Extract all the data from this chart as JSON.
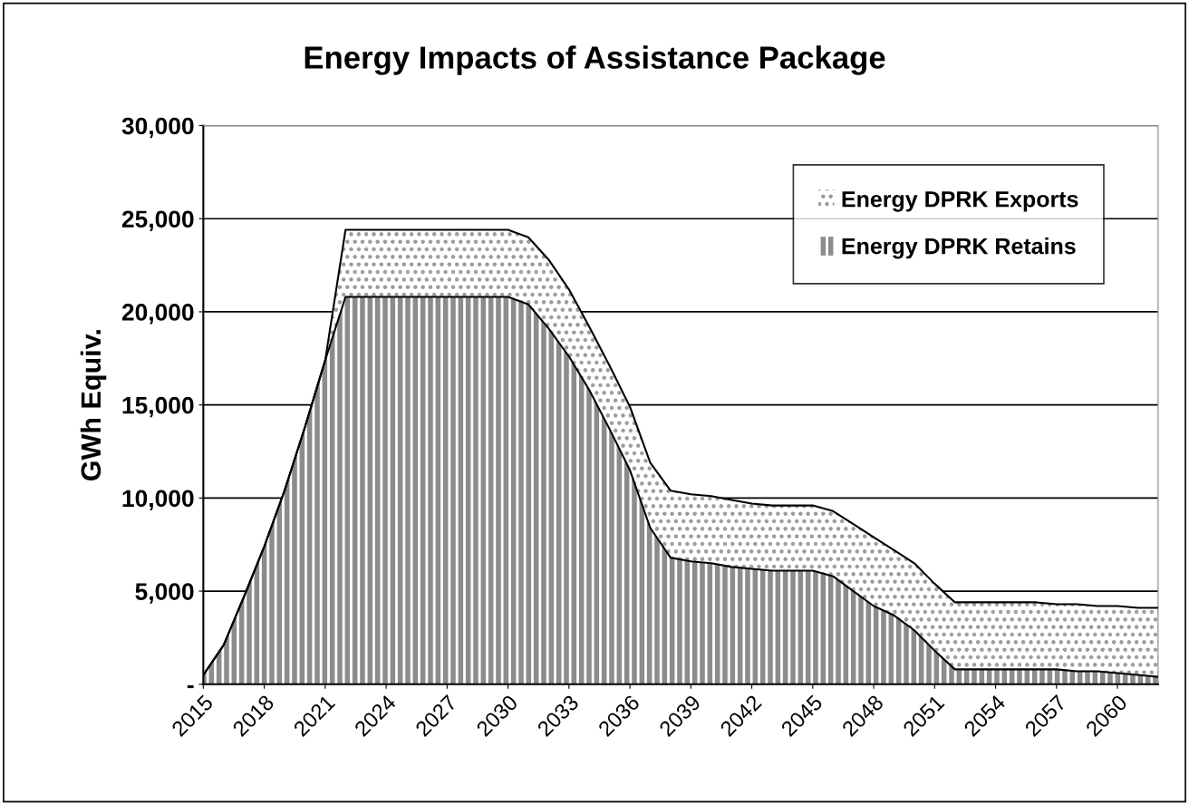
{
  "chart_data": {
    "type": "area",
    "title": "Energy Impacts of Assistance Package",
    "ylabel": "GWh Equiv.",
    "stacked": true,
    "x": [
      2015,
      2016,
      2017,
      2018,
      2019,
      2020,
      2021,
      2022,
      2023,
      2024,
      2025,
      2026,
      2027,
      2028,
      2029,
      2030,
      2031,
      2032,
      2033,
      2034,
      2035,
      2036,
      2037,
      2038,
      2039,
      2040,
      2041,
      2042,
      2043,
      2044,
      2045,
      2046,
      2047,
      2048,
      2049,
      2050,
      2051,
      2052,
      2053,
      2054,
      2055,
      2056,
      2057,
      2058,
      2059,
      2060,
      2061,
      2062
    ],
    "series": [
      {
        "name": "Energy DPRK Retains",
        "color": "#8c8c8c",
        "values": [
          500,
          2100,
          4700,
          7400,
          10400,
          13800,
          17400,
          20800,
          20800,
          20800,
          20800,
          20800,
          20800,
          20800,
          20800,
          20800,
          20400,
          19100,
          17600,
          15800,
          13700,
          11500,
          8400,
          6800,
          6600,
          6500,
          6300,
          6200,
          6100,
          6100,
          6100,
          5800,
          5000,
          4200,
          3700,
          2900,
          1800,
          800,
          800,
          800,
          800,
          800,
          800,
          700,
          700,
          600,
          500,
          400
        ]
      },
      {
        "name": "Energy DPRK Exports",
        "color": "#ffffff",
        "values": [
          0,
          0,
          0,
          0,
          0,
          0,
          0,
          3600,
          3600,
          3600,
          3600,
          3600,
          3600,
          3600,
          3600,
          3600,
          3600,
          3700,
          3600,
          3400,
          3400,
          3400,
          3500,
          3600,
          3600,
          3600,
          3600,
          3500,
          3500,
          3500,
          3500,
          3500,
          3600,
          3700,
          3500,
          3600,
          3600,
          3600,
          3600,
          3600,
          3600,
          3600,
          3500,
          3600,
          3500,
          3600,
          3600,
          3700
        ]
      }
    ],
    "xlim": [
      2015,
      2062
    ],
    "xticks": [
      2015,
      2018,
      2021,
      2024,
      2027,
      2030,
      2033,
      2036,
      2039,
      2042,
      2045,
      2048,
      2051,
      2054,
      2057,
      2060
    ],
    "ylim": [
      0,
      30000
    ],
    "yticks": [
      {
        "value": 0,
        "label": "-"
      },
      {
        "value": 5000,
        "label": "5,000"
      },
      {
        "value": 10000,
        "label": "10,000"
      },
      {
        "value": 15000,
        "label": "15,000"
      },
      {
        "value": 20000,
        "label": "20,000"
      },
      {
        "value": 25000,
        "label": "25,000"
      },
      {
        "value": 30000,
        "label": "30,000"
      }
    ],
    "grid": "y",
    "legend": "top right"
  }
}
